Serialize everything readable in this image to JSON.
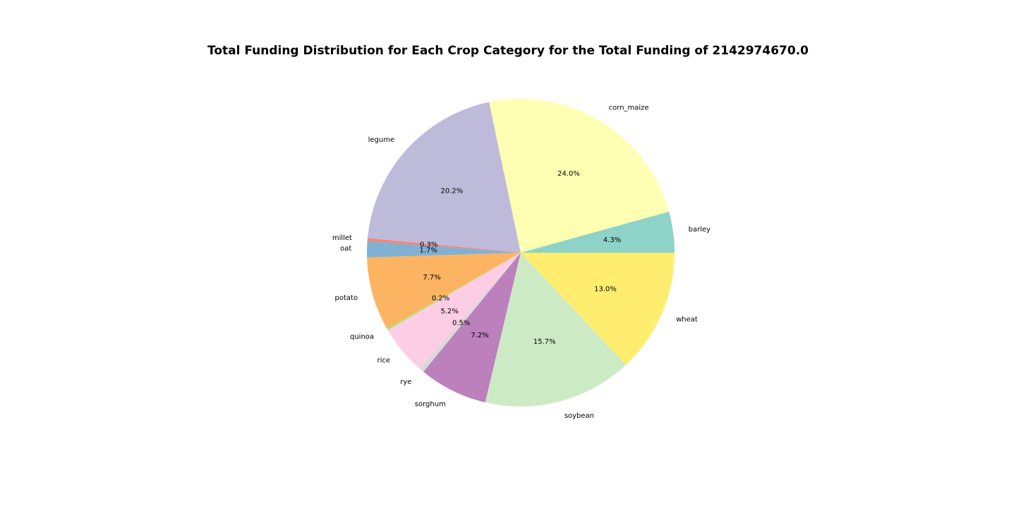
{
  "chart_data": {
    "type": "pie",
    "title": "Total Funding Distribution for Each Crop Category for the Total Funding of 2142974670.0",
    "start_angle_deg": 0,
    "direction": "counterclockwise",
    "slices": [
      {
        "label": "barley",
        "value": 4.3,
        "pct_label": "4.3%",
        "color": "#8dd3c7"
      },
      {
        "label": "corn_maize",
        "value": 24.0,
        "pct_label": "24.0%",
        "color": "#ffffb3"
      },
      {
        "label": "legume",
        "value": 20.2,
        "pct_label": "20.2%",
        "color": "#bebada"
      },
      {
        "label": "millet",
        "value": 0.3,
        "pct_label": "0.3%",
        "color": "#fb8072"
      },
      {
        "label": "oat",
        "value": 1.7,
        "pct_label": "1.7%",
        "color": "#80b1d3"
      },
      {
        "label": "potato",
        "value": 7.7,
        "pct_label": "7.7%",
        "color": "#fdb462"
      },
      {
        "label": "quinoa",
        "value": 0.2,
        "pct_label": "0.2%",
        "color": "#b3de69"
      },
      {
        "label": "rice",
        "value": 5.2,
        "pct_label": "5.2%",
        "color": "#fccde5"
      },
      {
        "label": "rye",
        "value": 0.5,
        "pct_label": "0.5%",
        "color": "#d9d9d9"
      },
      {
        "label": "sorghum",
        "value": 7.2,
        "pct_label": "7.2%",
        "color": "#bc80bd"
      },
      {
        "label": "soybean",
        "value": 15.7,
        "pct_label": "15.7%",
        "color": "#ccebc5"
      },
      {
        "label": "wheat",
        "value": 13.0,
        "pct_label": "13.0%",
        "color": "#ffed6f"
      }
    ]
  }
}
